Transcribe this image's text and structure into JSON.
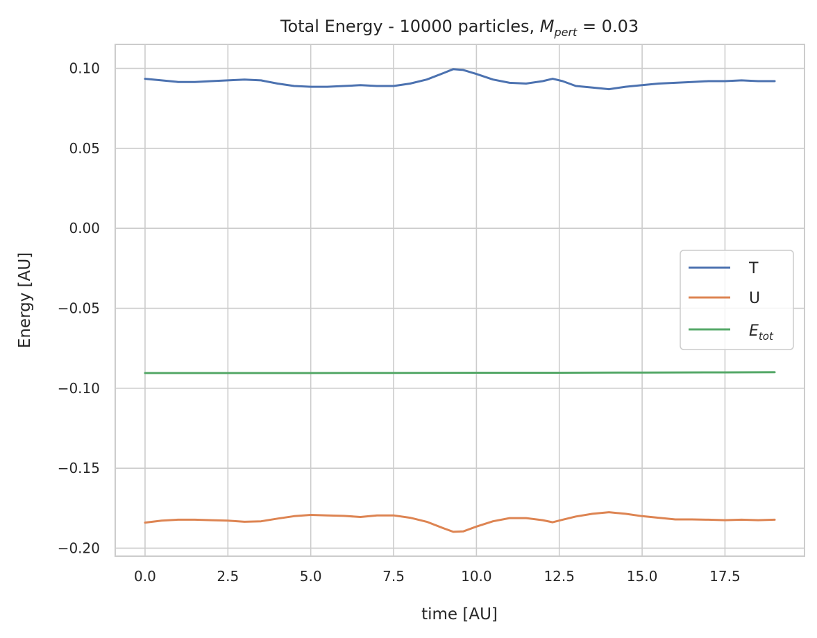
{
  "chart_data": {
    "type": "line",
    "title": {
      "prefix": "Total Energy - 10000 particles, ",
      "math_main": "M",
      "math_sub": "pert",
      "suffix": " = 0.03"
    },
    "xlabel": "time [AU]",
    "ylabel": "Energy [AU]",
    "xlim": [
      -0.9,
      19.9
    ],
    "ylim": [
      -0.205,
      0.115
    ],
    "xticks": [
      0.0,
      2.5,
      5.0,
      7.5,
      10.0,
      12.5,
      15.0,
      17.5
    ],
    "xtick_labels": [
      "0.0",
      "2.5",
      "5.0",
      "7.5",
      "10.0",
      "12.5",
      "15.0",
      "17.5"
    ],
    "yticks": [
      0.1,
      0.05,
      0.0,
      -0.05,
      -0.1,
      -0.15,
      -0.2
    ],
    "ytick_labels": [
      "0.10",
      "0.05",
      "0.00",
      "−0.05",
      "−0.10",
      "−0.15",
      "−0.20"
    ],
    "grid": true,
    "legend_position": "center-right",
    "series": [
      {
        "name": "T",
        "color": "#4c72b0",
        "x": [
          0,
          0.5,
          1.0,
          1.5,
          2.0,
          2.5,
          3.0,
          3.5,
          4.0,
          4.5,
          5.0,
          5.5,
          6.0,
          6.5,
          7.0,
          7.5,
          8.0,
          8.5,
          9.0,
          9.3,
          9.6,
          10.0,
          10.5,
          11.0,
          11.5,
          12.0,
          12.3,
          12.6,
          13.0,
          13.5,
          14.0,
          14.5,
          15.0,
          15.5,
          16.0,
          16.5,
          17.0,
          17.5,
          18.0,
          18.5,
          19.0
        ],
        "y": [
          0.0935,
          0.0925,
          0.0915,
          0.0915,
          0.092,
          0.0925,
          0.093,
          0.0925,
          0.0905,
          0.089,
          0.0885,
          0.0885,
          0.089,
          0.0895,
          0.089,
          0.089,
          0.0905,
          0.093,
          0.097,
          0.0995,
          0.099,
          0.0965,
          0.093,
          0.091,
          0.0905,
          0.092,
          0.0935,
          0.092,
          0.089,
          0.088,
          0.087,
          0.0885,
          0.0895,
          0.0905,
          0.091,
          0.0915,
          0.092,
          0.092,
          0.0925,
          0.092,
          0.092
        ]
      },
      {
        "name": "U",
        "color": "#dd8452",
        "x": [
          0,
          0.5,
          1.0,
          1.5,
          2.0,
          2.5,
          3.0,
          3.5,
          4.0,
          4.5,
          5.0,
          5.5,
          6.0,
          6.5,
          7.0,
          7.5,
          8.0,
          8.5,
          9.0,
          9.3,
          9.6,
          10.0,
          10.5,
          11.0,
          11.5,
          12.0,
          12.3,
          12.6,
          13.0,
          13.5,
          14.0,
          14.5,
          15.0,
          15.5,
          16.0,
          16.5,
          17.0,
          17.5,
          18.0,
          18.5,
          19.0
        ],
        "y": [
          -0.184,
          -0.1828,
          -0.1822,
          -0.1822,
          -0.1825,
          -0.1828,
          -0.1835,
          -0.1832,
          -0.1815,
          -0.18,
          -0.1792,
          -0.1795,
          -0.1798,
          -0.1805,
          -0.1795,
          -0.1795,
          -0.181,
          -0.1835,
          -0.1875,
          -0.1898,
          -0.1895,
          -0.1865,
          -0.1832,
          -0.1812,
          -0.1812,
          -0.1825,
          -0.1838,
          -0.1822,
          -0.1802,
          -0.1785,
          -0.1775,
          -0.1785,
          -0.18,
          -0.181,
          -0.182,
          -0.182,
          -0.1822,
          -0.1825,
          -0.1822,
          -0.1825,
          -0.1822
        ]
      },
      {
        "name_main": "E",
        "name_sub": "tot",
        "color": "#55a868",
        "x": [
          0,
          2.5,
          5.0,
          7.5,
          10.0,
          12.5,
          15.0,
          17.5,
          19.0
        ],
        "y": [
          -0.0905,
          -0.0905,
          -0.0905,
          -0.0904,
          -0.0903,
          -0.0903,
          -0.0902,
          -0.0901,
          -0.09
        ]
      }
    ]
  }
}
